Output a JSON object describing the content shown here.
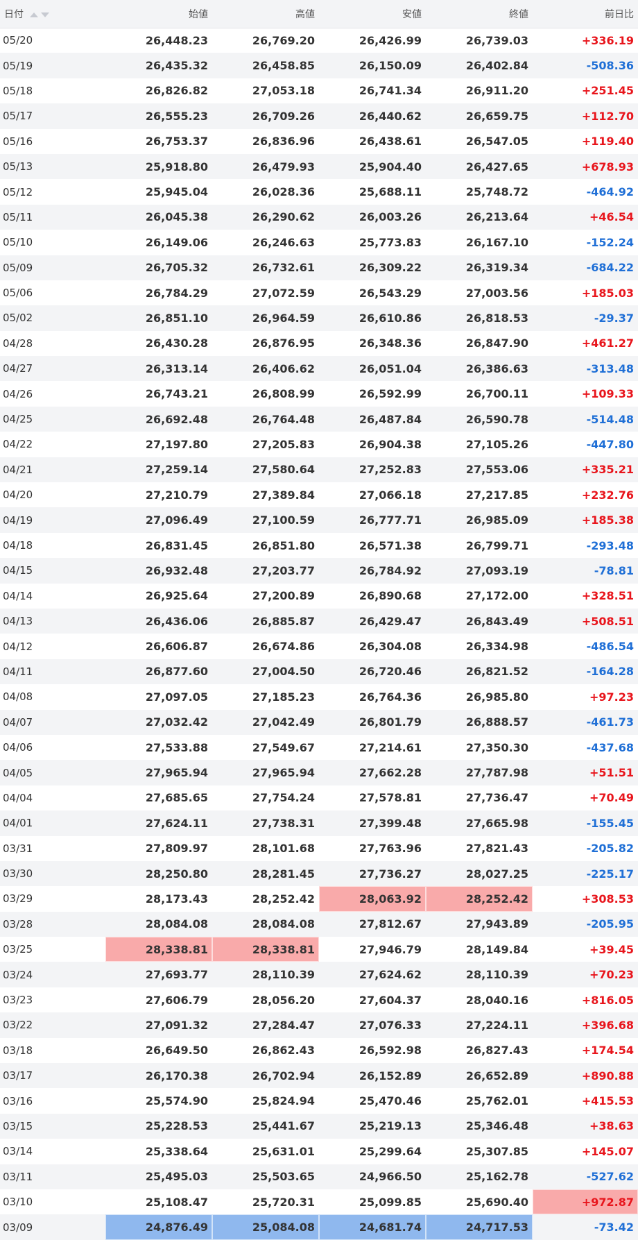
{
  "headers": [
    "日付",
    "始値",
    "高値",
    "安値",
    "終値",
    "前日比"
  ],
  "icons": {
    "sort_up": "triangle-up-icon",
    "sort_down": "triangle-down-icon"
  },
  "colors": {
    "up": "#e8151c",
    "down": "#1f6fd6",
    "highlight_high": "#f9aaaa",
    "highlight_low": "#8fb8ee"
  },
  "rows": [
    {
      "date": "05/20",
      "open": "26,448.23",
      "high": "26,769.20",
      "low": "26,426.99",
      "close": "26,739.03",
      "change": "+336.19"
    },
    {
      "date": "05/19",
      "open": "26,435.32",
      "high": "26,458.85",
      "low": "26,150.09",
      "close": "26,402.84",
      "change": "-508.36"
    },
    {
      "date": "05/18",
      "open": "26,826.82",
      "high": "27,053.18",
      "low": "26,741.34",
      "close": "26,911.20",
      "change": "+251.45"
    },
    {
      "date": "05/17",
      "open": "26,555.23",
      "high": "26,709.26",
      "low": "26,440.62",
      "close": "26,659.75",
      "change": "+112.70"
    },
    {
      "date": "05/16",
      "open": "26,753.37",
      "high": "26,836.96",
      "low": "26,438.61",
      "close": "26,547.05",
      "change": "+119.40"
    },
    {
      "date": "05/13",
      "open": "25,918.80",
      "high": "26,479.93",
      "low": "25,904.40",
      "close": "26,427.65",
      "change": "+678.93"
    },
    {
      "date": "05/12",
      "open": "25,945.04",
      "high": "26,028.36",
      "low": "25,688.11",
      "close": "25,748.72",
      "change": "-464.92"
    },
    {
      "date": "05/11",
      "open": "26,045.38",
      "high": "26,290.62",
      "low": "26,003.26",
      "close": "26,213.64",
      "change": "+46.54"
    },
    {
      "date": "05/10",
      "open": "26,149.06",
      "high": "26,246.63",
      "low": "25,773.83",
      "close": "26,167.10",
      "change": "-152.24"
    },
    {
      "date": "05/09",
      "open": "26,705.32",
      "high": "26,732.61",
      "low": "26,309.22",
      "close": "26,319.34",
      "change": "-684.22"
    },
    {
      "date": "05/06",
      "open": "26,784.29",
      "high": "27,072.59",
      "low": "26,543.29",
      "close": "27,003.56",
      "change": "+185.03"
    },
    {
      "date": "05/02",
      "open": "26,851.10",
      "high": "26,964.59",
      "low": "26,610.86",
      "close": "26,818.53",
      "change": "-29.37"
    },
    {
      "date": "04/28",
      "open": "26,430.28",
      "high": "26,876.95",
      "low": "26,348.36",
      "close": "26,847.90",
      "change": "+461.27"
    },
    {
      "date": "04/27",
      "open": "26,313.14",
      "high": "26,406.62",
      "low": "26,051.04",
      "close": "26,386.63",
      "change": "-313.48"
    },
    {
      "date": "04/26",
      "open": "26,743.21",
      "high": "26,808.99",
      "low": "26,592.99",
      "close": "26,700.11",
      "change": "+109.33"
    },
    {
      "date": "04/25",
      "open": "26,692.48",
      "high": "26,764.48",
      "low": "26,487.84",
      "close": "26,590.78",
      "change": "-514.48"
    },
    {
      "date": "04/22",
      "open": "27,197.80",
      "high": "27,205.83",
      "low": "26,904.38",
      "close": "27,105.26",
      "change": "-447.80"
    },
    {
      "date": "04/21",
      "open": "27,259.14",
      "high": "27,580.64",
      "low": "27,252.83",
      "close": "27,553.06",
      "change": "+335.21"
    },
    {
      "date": "04/20",
      "open": "27,210.79",
      "high": "27,389.84",
      "low": "27,066.18",
      "close": "27,217.85",
      "change": "+232.76"
    },
    {
      "date": "04/19",
      "open": "27,096.49",
      "high": "27,100.59",
      "low": "26,777.71",
      "close": "26,985.09",
      "change": "+185.38"
    },
    {
      "date": "04/18",
      "open": "26,831.45",
      "high": "26,851.80",
      "low": "26,571.38",
      "close": "26,799.71",
      "change": "-293.48"
    },
    {
      "date": "04/15",
      "open": "26,932.48",
      "high": "27,203.77",
      "low": "26,784.92",
      "close": "27,093.19",
      "change": "-78.81"
    },
    {
      "date": "04/14",
      "open": "26,925.64",
      "high": "27,200.89",
      "low": "26,890.68",
      "close": "27,172.00",
      "change": "+328.51"
    },
    {
      "date": "04/13",
      "open": "26,436.06",
      "high": "26,885.87",
      "low": "26,429.47",
      "close": "26,843.49",
      "change": "+508.51"
    },
    {
      "date": "04/12",
      "open": "26,606.87",
      "high": "26,674.86",
      "low": "26,304.08",
      "close": "26,334.98",
      "change": "-486.54"
    },
    {
      "date": "04/11",
      "open": "26,877.60",
      "high": "27,004.50",
      "low": "26,720.46",
      "close": "26,821.52",
      "change": "-164.28"
    },
    {
      "date": "04/08",
      "open": "27,097.05",
      "high": "27,185.23",
      "low": "26,764.36",
      "close": "26,985.80",
      "change": "+97.23"
    },
    {
      "date": "04/07",
      "open": "27,032.42",
      "high": "27,042.49",
      "low": "26,801.79",
      "close": "26,888.57",
      "change": "-461.73"
    },
    {
      "date": "04/06",
      "open": "27,533.88",
      "high": "27,549.67",
      "low": "27,214.61",
      "close": "27,350.30",
      "change": "-437.68"
    },
    {
      "date": "04/05",
      "open": "27,965.94",
      "high": "27,965.94",
      "low": "27,662.28",
      "close": "27,787.98",
      "change": "+51.51"
    },
    {
      "date": "04/04",
      "open": "27,685.65",
      "high": "27,754.24",
      "low": "27,578.81",
      "close": "27,736.47",
      "change": "+70.49"
    },
    {
      "date": "04/01",
      "open": "27,624.11",
      "high": "27,738.31",
      "low": "27,399.48",
      "close": "27,665.98",
      "change": "-155.45"
    },
    {
      "date": "03/31",
      "open": "27,809.97",
      "high": "28,101.68",
      "low": "27,763.96",
      "close": "27,821.43",
      "change": "-205.82"
    },
    {
      "date": "03/30",
      "open": "28,250.80",
      "high": "28,281.45",
      "low": "27,736.27",
      "close": "28,027.25",
      "change": "-225.17"
    },
    {
      "date": "03/29",
      "open": "28,173.43",
      "high": "28,252.42",
      "low": "28,063.92",
      "close": "28,252.42",
      "change": "+308.53",
      "hl": {
        "low": "red",
        "close": "red"
      }
    },
    {
      "date": "03/28",
      "open": "28,084.08",
      "high": "28,084.08",
      "low": "27,812.67",
      "close": "27,943.89",
      "change": "-205.95"
    },
    {
      "date": "03/25",
      "open": "28,338.81",
      "high": "28,338.81",
      "low": "27,946.79",
      "close": "28,149.84",
      "change": "+39.45",
      "hl": {
        "open": "red",
        "high": "red"
      }
    },
    {
      "date": "03/24",
      "open": "27,693.77",
      "high": "28,110.39",
      "low": "27,624.62",
      "close": "28,110.39",
      "change": "+70.23"
    },
    {
      "date": "03/23",
      "open": "27,606.79",
      "high": "28,056.20",
      "low": "27,604.37",
      "close": "28,040.16",
      "change": "+816.05"
    },
    {
      "date": "03/22",
      "open": "27,091.32",
      "high": "27,284.47",
      "low": "27,076.33",
      "close": "27,224.11",
      "change": "+396.68"
    },
    {
      "date": "03/18",
      "open": "26,649.50",
      "high": "26,862.43",
      "low": "26,592.98",
      "close": "26,827.43",
      "change": "+174.54"
    },
    {
      "date": "03/17",
      "open": "26,170.38",
      "high": "26,702.94",
      "low": "26,152.89",
      "close": "26,652.89",
      "change": "+890.88"
    },
    {
      "date": "03/16",
      "open": "25,574.90",
      "high": "25,824.94",
      "low": "25,470.46",
      "close": "25,762.01",
      "change": "+415.53"
    },
    {
      "date": "03/15",
      "open": "25,228.53",
      "high": "25,441.67",
      "low": "25,219.13",
      "close": "25,346.48",
      "change": "+38.63"
    },
    {
      "date": "03/14",
      "open": "25,338.64",
      "high": "25,631.01",
      "low": "25,299.64",
      "close": "25,307.85",
      "change": "+145.07"
    },
    {
      "date": "03/11",
      "open": "25,495.03",
      "high": "25,503.65",
      "low": "24,966.50",
      "close": "25,162.78",
      "change": "-527.62"
    },
    {
      "date": "03/10",
      "open": "25,108.47",
      "high": "25,720.31",
      "low": "25,099.85",
      "close": "25,690.40",
      "change": "+972.87",
      "hl": {
        "change": "red"
      }
    },
    {
      "date": "03/09",
      "open": "24,876.49",
      "high": "25,084.08",
      "low": "24,681.74",
      "close": "24,717.53",
      "change": "-73.42",
      "hl": {
        "open": "blue",
        "high": "blue",
        "low": "blue",
        "close": "blue"
      }
    }
  ]
}
